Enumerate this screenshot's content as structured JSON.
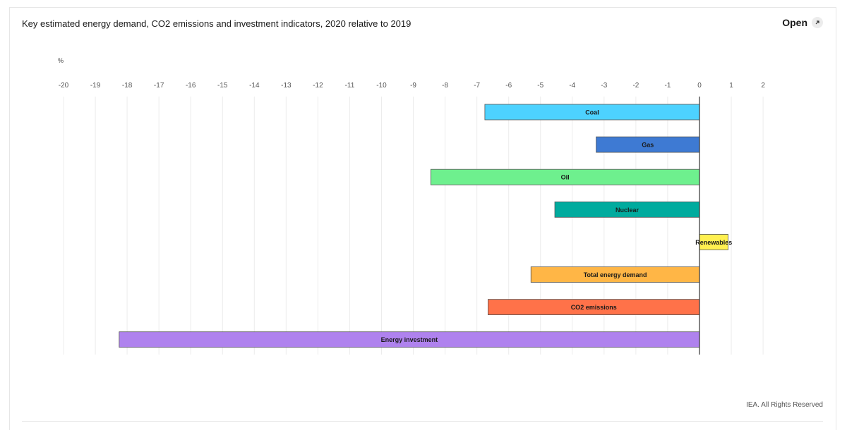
{
  "header": {
    "title": "Key estimated energy demand, CO2 emissions and investment indicators, 2020 relative to 2019",
    "open_label": "Open"
  },
  "footer": {
    "credit": "IEA. All Rights Reserved"
  },
  "icons": {
    "open": "external-link-icon"
  },
  "chart_data": {
    "type": "bar",
    "orientation": "horizontal",
    "unit": "%",
    "xlim": [
      -20,
      2
    ],
    "ticks": [
      -20,
      -19,
      -18,
      -17,
      -16,
      -15,
      -14,
      -13,
      -12,
      -11,
      -10,
      -9,
      -8,
      -7,
      -6,
      -5,
      -4,
      -3,
      -2,
      -1,
      0,
      1,
      2
    ],
    "grid": true,
    "bars": [
      {
        "label": "Coal",
        "value": -6.75,
        "color": "#4dd2ff"
      },
      {
        "label": "Gas",
        "value": -3.25,
        "color": "#3e7ad3"
      },
      {
        "label": "Oil",
        "value": -8.45,
        "color": "#6ef08e"
      },
      {
        "label": "Nuclear",
        "value": -4.55,
        "color": "#00ab9e"
      },
      {
        "label": "Renewables",
        "value": 0.9,
        "color": "#fff050"
      },
      {
        "label": "Total energy demand",
        "value": -5.3,
        "color": "#ffb646"
      },
      {
        "label": "CO2 emissions",
        "value": -6.65,
        "color": "#ff7249"
      },
      {
        "label": "Energy investment",
        "value": -18.25,
        "color": "#af82ee"
      }
    ]
  }
}
